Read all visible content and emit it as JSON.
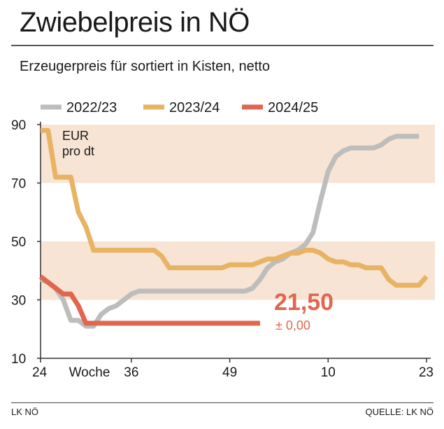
{
  "title": "Zwiebelpreis in NÖ",
  "subtitle": "Erzeugerpreis für sortiert in Kisten, netto",
  "footer": {
    "left": "LK NÖ",
    "right": "QUELLE: LK NÖ"
  },
  "chart_data": {
    "type": "line",
    "title": "Zwiebelpreis in NÖ",
    "subtitle": "Erzeugerpreis für sortiert in Kisten, netto",
    "unit_label": [
      "EUR",
      "pro dt"
    ],
    "xlabel": "Woche",
    "x_ticks": [
      {
        "label": "24",
        "x": 0
      },
      {
        "label": "36",
        "x": 12
      },
      {
        "label": "49",
        "x": 25
      },
      {
        "label": "10",
        "x": 38
      },
      {
        "label": "23",
        "x": 51
      }
    ],
    "y_ticks": [
      10,
      30,
      50,
      70,
      90
    ],
    "ylim": [
      10,
      90
    ],
    "xlim": [
      0,
      51
    ],
    "bands": [
      [
        70,
        90
      ],
      [
        30,
        50
      ]
    ],
    "colors": {
      "2022/23": "#bdbdbd",
      "2023/24": "#e8b363",
      "2024/25": "#e06650",
      "band": "#f7e4d4",
      "annotation": "#e06650"
    },
    "series": [
      {
        "name": "2022/23",
        "points": [
          [
            0,
            37
          ],
          [
            1,
            36
          ],
          [
            2,
            34
          ],
          [
            3,
            30
          ],
          [
            4,
            23
          ],
          [
            5,
            23
          ],
          [
            6,
            21
          ],
          [
            7,
            21
          ],
          [
            8,
            25
          ],
          [
            9,
            27
          ],
          [
            10,
            28
          ],
          [
            11,
            30
          ],
          [
            12,
            32
          ],
          [
            13,
            33
          ],
          [
            14,
            33
          ],
          [
            15,
            33
          ],
          [
            16,
            33
          ],
          [
            17,
            33
          ],
          [
            18,
            33
          ],
          [
            19,
            33
          ],
          [
            20,
            33
          ],
          [
            21,
            33
          ],
          [
            22,
            33
          ],
          [
            23,
            33
          ],
          [
            24,
            33
          ],
          [
            25,
            33
          ],
          [
            26,
            33
          ],
          [
            27,
            33
          ],
          [
            28,
            34
          ],
          [
            29,
            37
          ],
          [
            30,
            41
          ],
          [
            31,
            43
          ],
          [
            32,
            44
          ],
          [
            33,
            46
          ],
          [
            34,
            47
          ],
          [
            35,
            49
          ],
          [
            36,
            53
          ],
          [
            37,
            64
          ],
          [
            38,
            74
          ],
          [
            39,
            79
          ],
          [
            40,
            81
          ],
          [
            41,
            82
          ],
          [
            42,
            82
          ],
          [
            43,
            82
          ],
          [
            44,
            82
          ],
          [
            45,
            83
          ],
          [
            46,
            85
          ],
          [
            47,
            86
          ],
          [
            48,
            86
          ],
          [
            49,
            86
          ],
          [
            50,
            86
          ]
        ]
      },
      {
        "name": "2023/24",
        "points": [
          [
            0,
            88
          ],
          [
            1,
            88
          ],
          [
            2,
            72
          ],
          [
            3,
            72
          ],
          [
            4,
            72
          ],
          [
            5,
            60
          ],
          [
            6,
            55
          ],
          [
            7,
            47
          ],
          [
            8,
            47
          ],
          [
            9,
            47
          ],
          [
            10,
            47
          ],
          [
            11,
            47
          ],
          [
            12,
            47
          ],
          [
            13,
            47
          ],
          [
            14,
            47
          ],
          [
            15,
            47
          ],
          [
            16,
            45
          ],
          [
            17,
            41
          ],
          [
            18,
            41
          ],
          [
            19,
            41
          ],
          [
            20,
            41
          ],
          [
            21,
            41
          ],
          [
            22,
            41
          ],
          [
            23,
            41
          ],
          [
            24,
            41
          ],
          [
            25,
            42
          ],
          [
            26,
            42
          ],
          [
            27,
            42
          ],
          [
            28,
            42
          ],
          [
            29,
            43
          ],
          [
            30,
            44
          ],
          [
            31,
            44
          ],
          [
            32,
            45
          ],
          [
            33,
            46
          ],
          [
            34,
            46
          ],
          [
            35,
            47
          ],
          [
            36,
            47
          ],
          [
            37,
            46
          ],
          [
            38,
            44
          ],
          [
            39,
            43
          ],
          [
            40,
            43
          ],
          [
            41,
            42
          ],
          [
            42,
            42
          ],
          [
            43,
            41
          ],
          [
            44,
            41
          ],
          [
            45,
            41
          ],
          [
            46,
            37
          ],
          [
            47,
            35
          ],
          [
            48,
            35
          ],
          [
            49,
            35
          ],
          [
            50,
            35
          ],
          [
            51,
            38
          ]
        ]
      },
      {
        "name": "2024/25",
        "points": [
          [
            0,
            38
          ],
          [
            1,
            36
          ],
          [
            2,
            34
          ],
          [
            3,
            32
          ],
          [
            4,
            32
          ],
          [
            5,
            28
          ],
          [
            6,
            22
          ],
          [
            7,
            22
          ],
          [
            8,
            22
          ],
          [
            9,
            22
          ],
          [
            10,
            22
          ],
          [
            11,
            22
          ],
          [
            12,
            22
          ],
          [
            13,
            22
          ],
          [
            14,
            22
          ],
          [
            15,
            22
          ],
          [
            16,
            22
          ],
          [
            17,
            22
          ],
          [
            18,
            22
          ],
          [
            19,
            22
          ],
          [
            20,
            22
          ],
          [
            21,
            22
          ],
          [
            22,
            22
          ],
          [
            23,
            22
          ],
          [
            24,
            22
          ],
          [
            25,
            22
          ],
          [
            26,
            22
          ],
          [
            27,
            22
          ],
          [
            28,
            22
          ],
          [
            29,
            22
          ]
        ]
      }
    ],
    "annotation": {
      "value": "21,50",
      "change": "± 0,00"
    }
  }
}
